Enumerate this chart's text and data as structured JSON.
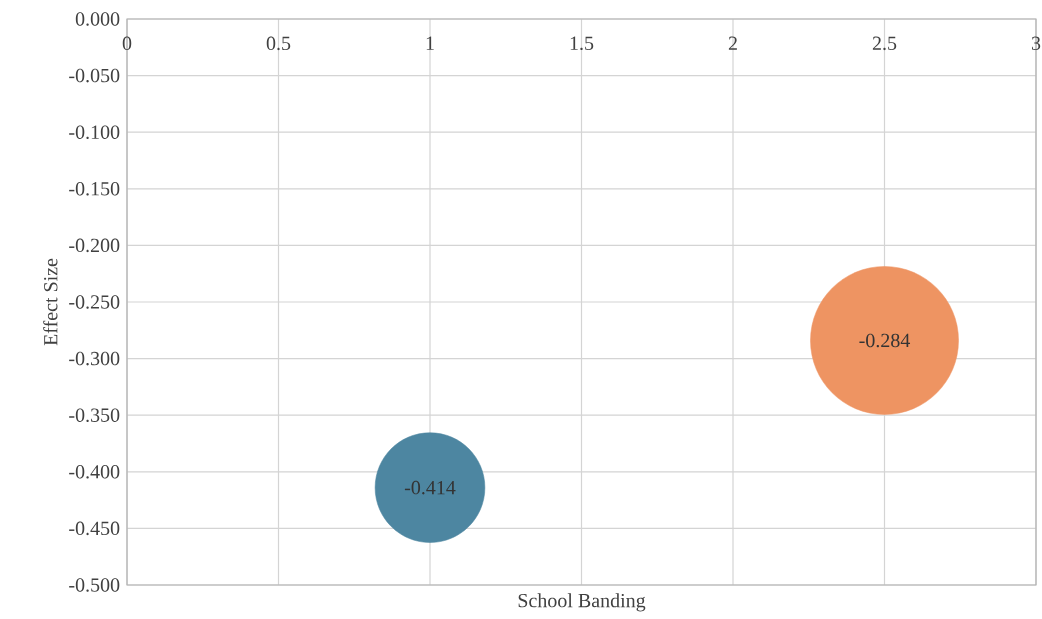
{
  "chart_data": {
    "type": "bubble",
    "xlabel": "School Banding",
    "ylabel": "Effect Size",
    "x": [
      1,
      2.5
    ],
    "values": [
      -0.414,
      -0.284
    ],
    "sizes": [
      0.55,
      1
    ],
    "colors": [
      "#4d86a1",
      "#ee9462"
    ],
    "data_labels": true,
    "grid": true,
    "xlim": [
      0,
      3
    ],
    "xticks": [
      0,
      0.5,
      1,
      1.5,
      2,
      2.5,
      3
    ],
    "ylim": [
      -0.5,
      0
    ],
    "yticks": [
      {
        "value": 0,
        "label": "0.000"
      },
      {
        "value": -0.05,
        "label": "-0.050"
      },
      {
        "value": -0.1,
        "label": "-0.100"
      },
      {
        "value": -0.15,
        "label": "-0.150"
      },
      {
        "value": -0.2,
        "label": "-0.200"
      },
      {
        "value": -0.25,
        "label": "-0.250"
      },
      {
        "value": -0.3,
        "label": "-0.300"
      },
      {
        "value": -0.35,
        "label": "-0.350"
      },
      {
        "value": -0.4,
        "label": "-0.400"
      },
      {
        "value": -0.45,
        "label": "-0.450"
      },
      {
        "value": -0.5,
        "label": "-0.500"
      }
    ]
  }
}
